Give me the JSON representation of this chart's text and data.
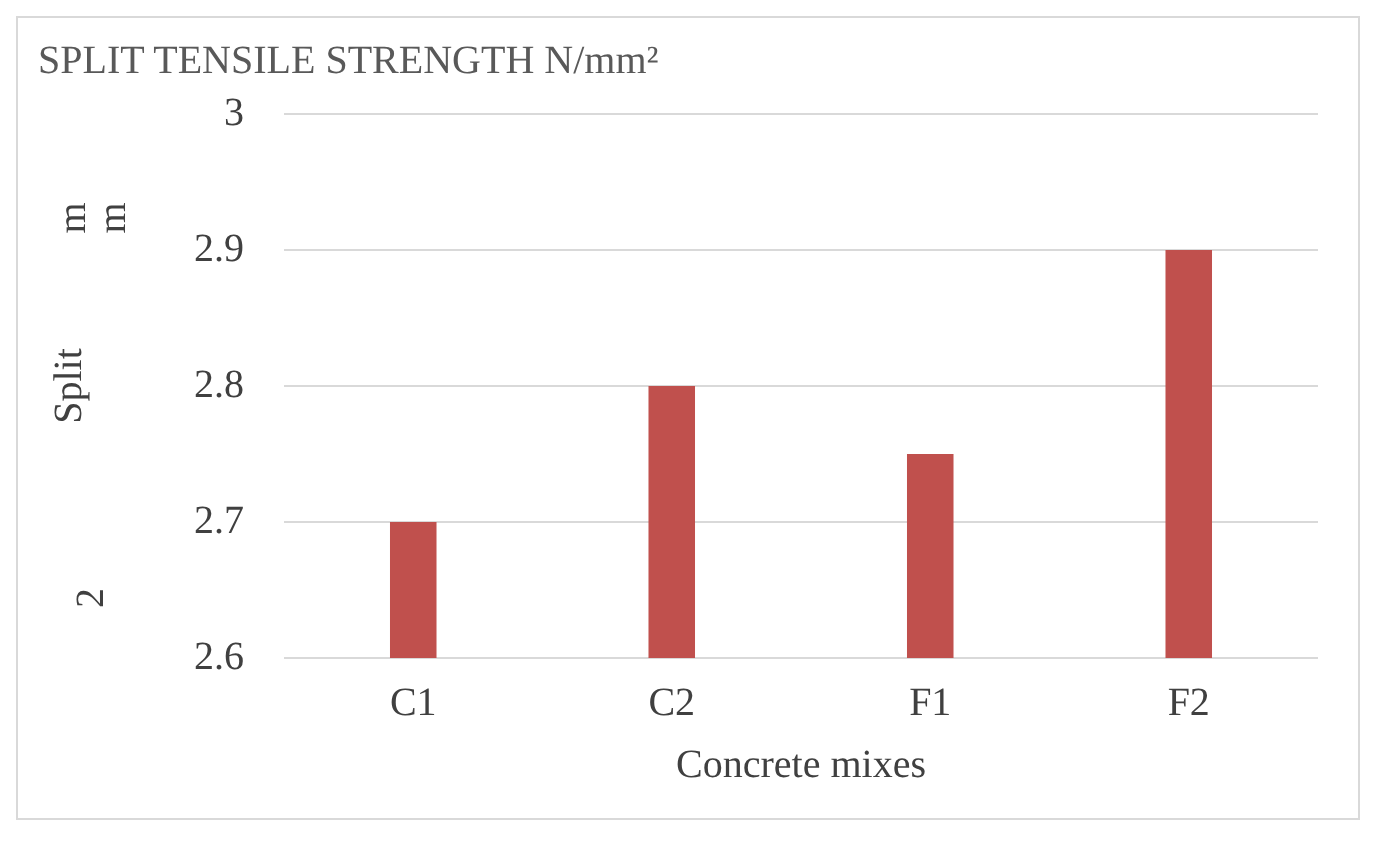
{
  "chart_data": {
    "type": "bar",
    "title": "SPLIT TENSILE STRENGTH N/mm²",
    "xlabel": "Concrete mixes",
    "ylabel": "Split",
    "annotations": [
      "2",
      "m",
      "m"
    ],
    "categories": [
      "C1",
      "C2",
      "F1",
      "F2"
    ],
    "values": [
      2.7,
      2.8,
      2.75,
      2.9
    ],
    "color": "#c0504d",
    "ylim": [
      2.6,
      3
    ],
    "yticks": [
      2.6,
      2.7,
      2.8,
      2.9,
      3
    ],
    "grid": "y"
  }
}
